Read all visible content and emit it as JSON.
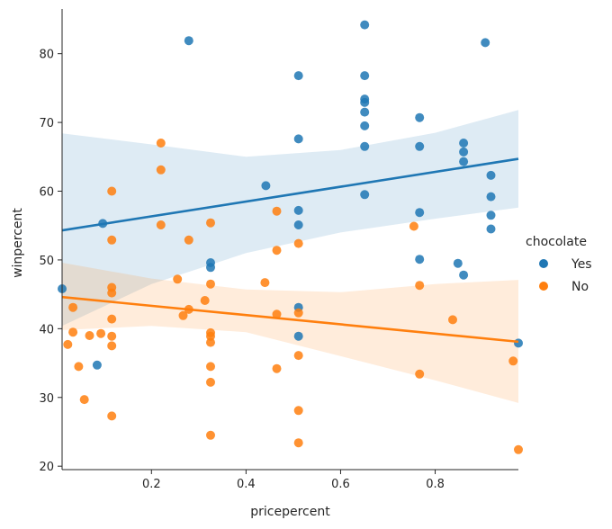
{
  "chart_data": {
    "type": "scatter",
    "title": "",
    "xlabel": "pricepercent",
    "ylabel": "winpercent",
    "xlim": [
      0.011,
      0.976
    ],
    "ylim": [
      19.5,
      86.5
    ],
    "xticks": [
      0.2,
      0.4,
      0.6,
      0.8
    ],
    "xtick_labels": [
      "0.2",
      "0.4",
      "0.6",
      "0.8"
    ],
    "yticks": [
      20,
      30,
      40,
      50,
      60,
      70,
      80
    ],
    "ytick_labels": [
      "20",
      "30",
      "40",
      "50",
      "60",
      "70",
      "80"
    ],
    "grid": false,
    "legend": {
      "title": "chocolate",
      "placement": "center-right"
    },
    "series": [
      {
        "name": "Yes",
        "color": "#1f77b4",
        "points": [
          [
            0.011,
            45.8
          ],
          [
            0.085,
            34.7
          ],
          [
            0.097,
            55.3
          ],
          [
            0.279,
            81.9
          ],
          [
            0.325,
            49.6
          ],
          [
            0.325,
            48.9
          ],
          [
            0.442,
            60.8
          ],
          [
            0.511,
            76.8
          ],
          [
            0.511,
            67.6
          ],
          [
            0.511,
            57.2
          ],
          [
            0.511,
            55.1
          ],
          [
            0.511,
            43.1
          ],
          [
            0.511,
            38.9
          ],
          [
            0.651,
            84.2
          ],
          [
            0.651,
            76.8
          ],
          [
            0.651,
            73.4
          ],
          [
            0.651,
            72.9
          ],
          [
            0.651,
            71.5
          ],
          [
            0.651,
            69.5
          ],
          [
            0.651,
            66.5
          ],
          [
            0.651,
            59.5
          ],
          [
            0.767,
            70.7
          ],
          [
            0.767,
            66.5
          ],
          [
            0.767,
            56.9
          ],
          [
            0.767,
            50.1
          ],
          [
            0.848,
            49.5
          ],
          [
            0.86,
            67.0
          ],
          [
            0.86,
            65.7
          ],
          [
            0.86,
            64.3
          ],
          [
            0.86,
            47.8
          ],
          [
            0.906,
            81.6
          ],
          [
            0.918,
            62.3
          ],
          [
            0.918,
            59.2
          ],
          [
            0.918,
            56.5
          ],
          [
            0.918,
            54.5
          ],
          [
            0.976,
            37.9
          ]
        ],
        "fit": {
          "x": [
            0.011,
            0.976
          ],
          "y": [
            54.3,
            64.7
          ]
        },
        "ci_lower": [
          [
            0.011,
            40.4
          ],
          [
            0.2,
            46.5
          ],
          [
            0.4,
            51.0
          ],
          [
            0.6,
            54.0
          ],
          [
            0.8,
            56.0
          ],
          [
            0.976,
            57.6
          ]
        ],
        "ci_upper": [
          [
            0.011,
            68.4
          ],
          [
            0.2,
            66.8
          ],
          [
            0.4,
            65.0
          ],
          [
            0.6,
            66.0
          ],
          [
            0.8,
            68.5
          ],
          [
            0.976,
            71.8
          ]
        ]
      },
      {
        "name": "No",
        "color": "#ff7f0e",
        "points": [
          [
            0.023,
            37.7
          ],
          [
            0.034,
            43.1
          ],
          [
            0.034,
            39.5
          ],
          [
            0.046,
            34.5
          ],
          [
            0.058,
            29.7
          ],
          [
            0.069,
            39.0
          ],
          [
            0.093,
            39.3
          ],
          [
            0.116,
            60.0
          ],
          [
            0.116,
            52.9
          ],
          [
            0.116,
            46.0
          ],
          [
            0.116,
            45.2
          ],
          [
            0.116,
            41.4
          ],
          [
            0.116,
            38.9
          ],
          [
            0.116,
            37.5
          ],
          [
            0.116,
            27.3
          ],
          [
            0.22,
            67.0
          ],
          [
            0.22,
            63.1
          ],
          [
            0.22,
            55.1
          ],
          [
            0.255,
            47.2
          ],
          [
            0.267,
            41.9
          ],
          [
            0.279,
            52.9
          ],
          [
            0.279,
            42.8
          ],
          [
            0.313,
            44.1
          ],
          [
            0.325,
            55.4
          ],
          [
            0.325,
            46.5
          ],
          [
            0.325,
            39.4
          ],
          [
            0.325,
            38.9
          ],
          [
            0.325,
            38.0
          ],
          [
            0.325,
            34.5
          ],
          [
            0.325,
            32.2
          ],
          [
            0.325,
            24.5
          ],
          [
            0.44,
            46.7
          ],
          [
            0.465,
            57.1
          ],
          [
            0.465,
            51.4
          ],
          [
            0.465,
            42.1
          ],
          [
            0.465,
            34.2
          ],
          [
            0.511,
            52.4
          ],
          [
            0.511,
            42.3
          ],
          [
            0.511,
            36.1
          ],
          [
            0.511,
            28.1
          ],
          [
            0.511,
            23.4
          ],
          [
            0.755,
            54.9
          ],
          [
            0.767,
            46.3
          ],
          [
            0.767,
            33.4
          ],
          [
            0.837,
            41.3
          ],
          [
            0.965,
            35.3
          ],
          [
            0.976,
            22.4
          ]
        ],
        "fit": {
          "x": [
            0.011,
            0.976
          ],
          "y": [
            44.6,
            38.1
          ]
        },
        "ci_lower": [
          [
            0.011,
            39.8
          ],
          [
            0.2,
            40.4
          ],
          [
            0.4,
            39.5
          ],
          [
            0.6,
            36.0
          ],
          [
            0.8,
            32.5
          ],
          [
            0.976,
            29.2
          ]
        ],
        "ci_upper": [
          [
            0.011,
            49.6
          ],
          [
            0.2,
            47.3
          ],
          [
            0.4,
            45.7
          ],
          [
            0.6,
            45.3
          ],
          [
            0.8,
            46.5
          ],
          [
            0.976,
            47.1
          ]
        ]
      }
    ]
  }
}
